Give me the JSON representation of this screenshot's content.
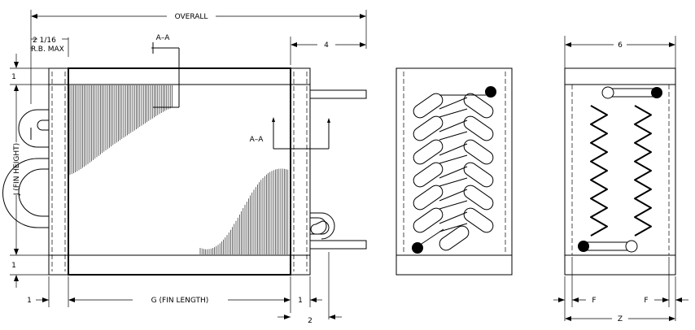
{
  "drawing": {
    "front_view": {
      "overall_label": "OVERALL",
      "rb_max_value": "2 1/16",
      "rb_max_label": "R.B. MAX",
      "section_label_top": "A–A",
      "section_label_mid": "A–A",
      "connection_length": "4",
      "height_label": "J (FIN HEIGHT)",
      "top_flange": "1",
      "bottom_flange": "1",
      "left_plate": "1",
      "fin_length_label": "G (FIN LENGTH)",
      "right_plate": "1",
      "stub_offset": "2"
    },
    "side_view_headers": {},
    "end_view": {
      "width_label": "6",
      "f_left": "F",
      "f_right": "F",
      "z_label": "Z"
    }
  }
}
